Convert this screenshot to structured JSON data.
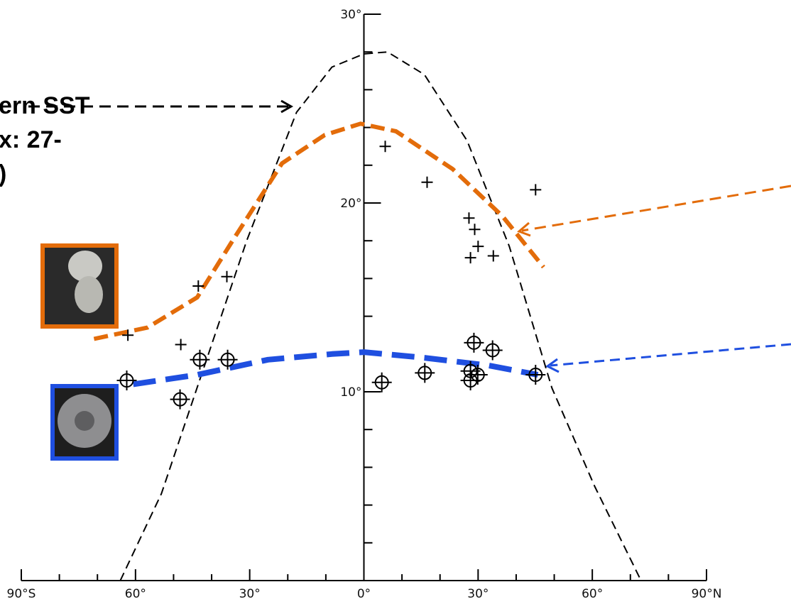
{
  "chart_data": {
    "type": "scatter",
    "annotations": [
      "ern SST",
      "x: 27-",
      ")"
    ],
    "xlim": [
      -90,
      90
    ],
    "ylim": [
      0,
      30
    ],
    "xticks": [
      {
        "value": -90,
        "label": "90°S"
      },
      {
        "value": -60,
        "label": "60°"
      },
      {
        "value": -30,
        "label": "30°"
      },
      {
        "value": 0,
        "label": "0°"
      },
      {
        "value": 30,
        "label": "30°"
      },
      {
        "value": 60,
        "label": "60°"
      },
      {
        "value": 90,
        "label": "90°N"
      }
    ],
    "xminor_ticks": [
      -80,
      -70,
      -50,
      -40,
      -20,
      -10,
      10,
      20,
      40,
      50,
      70,
      80
    ],
    "yticks": [
      {
        "value": 10,
        "label": "10°"
      },
      {
        "value": 20,
        "label": "20°"
      },
      {
        "value": 30,
        "label": "30°"
      }
    ],
    "yminor_ticks": [
      2,
      4,
      6,
      8,
      12,
      14,
      16,
      18,
      22,
      24,
      26,
      28
    ],
    "series": [
      {
        "kind": "line",
        "color": "#000000",
        "x": [
          -64,
          -53.2,
          -42,
          -30.8,
          -17.7,
          -8.4,
          0,
          6.2,
          15.9,
          27.1,
          38.2,
          49.4,
          60.6,
          72.8
        ],
        "values": [
          0,
          4.6,
          11.3,
          18.0,
          24.8,
          27.2,
          27.9,
          28.0,
          26.8,
          23.3,
          17.7,
          10.2,
          5.0,
          0
        ]
      },
      {
        "kind": "line",
        "color": "#e36c0a",
        "x": [
          -70.9,
          -56.9,
          -43.8,
          -34.5,
          -21.5,
          -10.3,
          -0.9,
          8.4,
          23.3,
          36.4,
          47.2
        ],
        "values": [
          12.8,
          13.4,
          15.0,
          18.0,
          22.1,
          23.6,
          24.2,
          23.8,
          21.8,
          19.3,
          16.6
        ]
      },
      {
        "kind": "line",
        "color": "#1f4fe0",
        "x": [
          -60.6,
          -43.8,
          -25.2,
          -8.4,
          0,
          15.9,
          32.6,
          45.7
        ],
        "values": [
          10.4,
          10.9,
          11.7,
          12.0,
          12.1,
          11.8,
          11.4,
          10.9
        ]
      },
      {
        "kind": "plus",
        "color": "#000000",
        "x": [
          5.6,
          16.6,
          45.1,
          27.6,
          29.1,
          30.0,
          28.0,
          34.0,
          -43.5,
          -36.0,
          -62.0,
          -48.1
        ],
        "values": [
          23.0,
          21.1,
          20.7,
          19.2,
          18.6,
          17.7,
          17.1,
          17.2,
          15.6,
          16.1,
          13.0,
          12.5
        ]
      },
      {
        "kind": "circle-plus",
        "color": "#000000",
        "x": [
          -62.3,
          -48.3,
          -43.1,
          -35.8,
          4.7,
          16.0,
          28.9,
          33.8,
          28.0,
          29.9,
          28.0,
          45.1
        ],
        "values": [
          10.6,
          9.6,
          11.7,
          11.7,
          10.5,
          11.0,
          12.6,
          12.2,
          11.1,
          10.9,
          10.6,
          10.9
        ]
      }
    ]
  }
}
